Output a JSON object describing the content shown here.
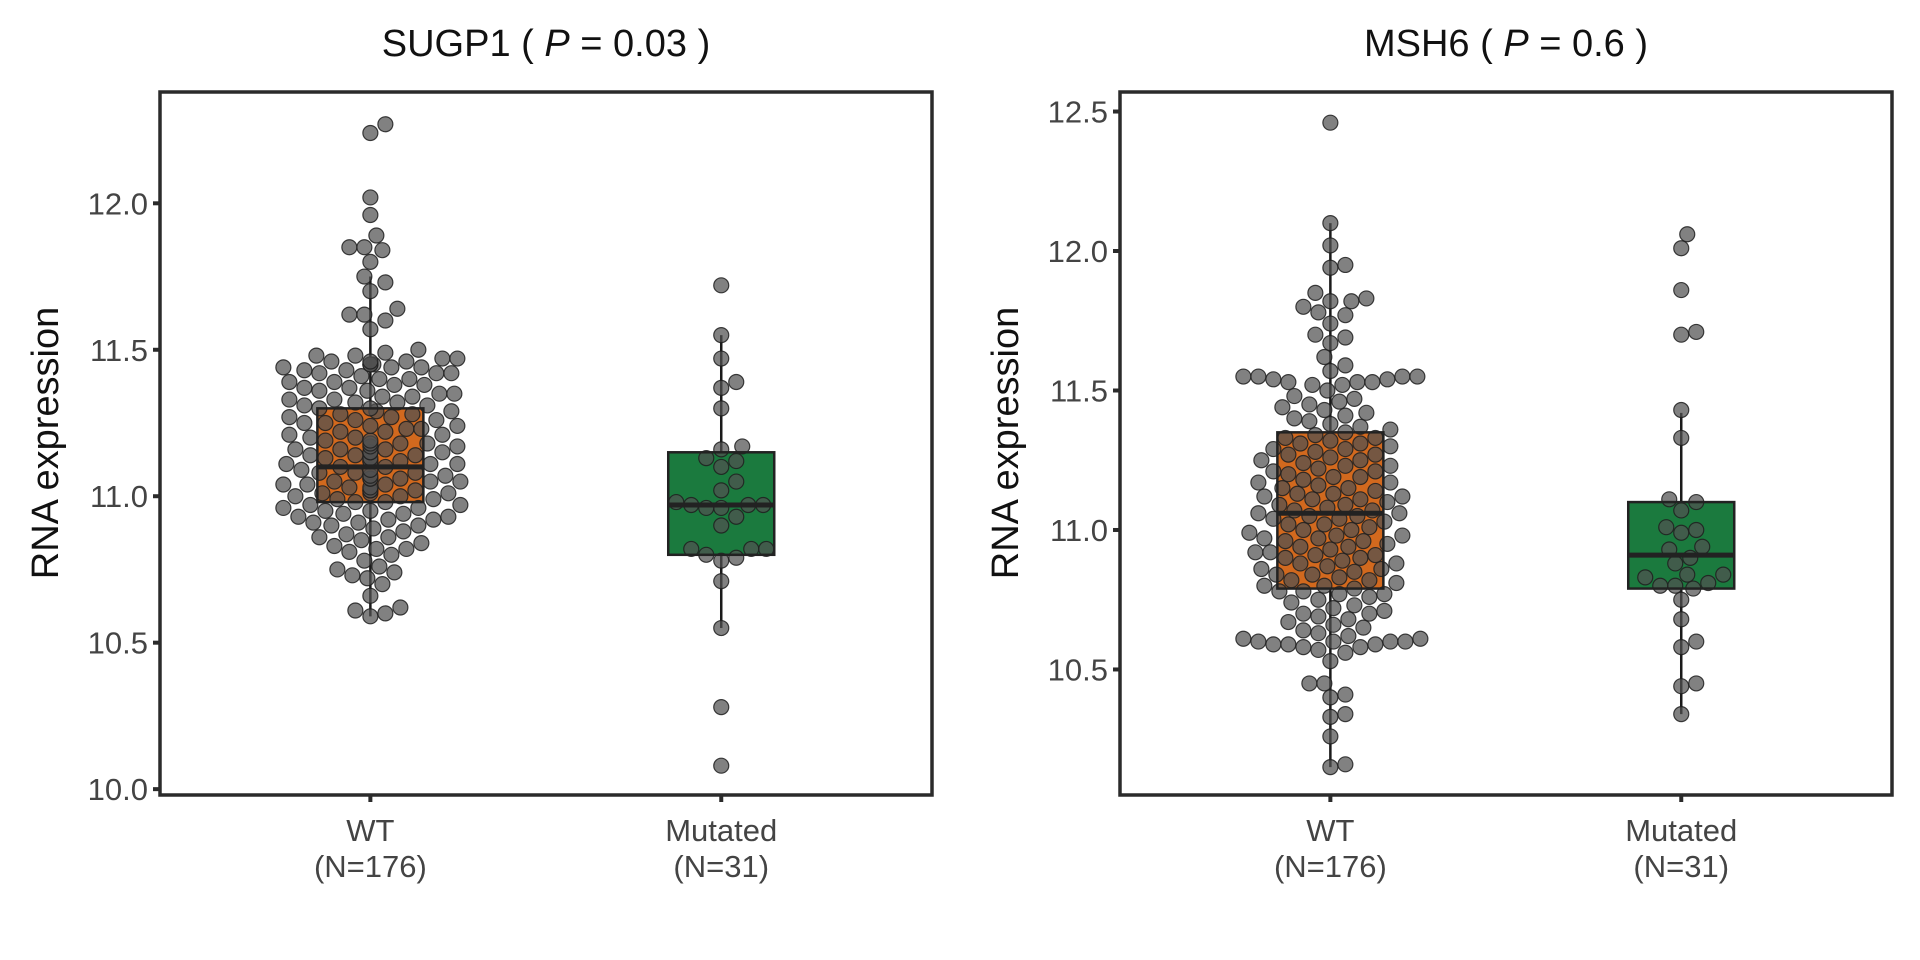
{
  "chart_data": [
    {
      "type": "box+beeswarm",
      "title_gene": "SUGP1",
      "title_p_symbol": "P",
      "title_p_value": "0.03",
      "ylabel": "RNA expression",
      "ylim": [
        9.98,
        12.38
      ],
      "yticks": [
        "10.0",
        "10.5",
        "11.0",
        "11.5",
        "12.0"
      ],
      "categories": [
        {
          "name": "WT",
          "n_label": "(N=176)",
          "color": "#D2691E",
          "box": {
            "q1": 10.98,
            "median": 11.1,
            "q3": 11.3,
            "whisker_low": 10.59,
            "whisker_high": 11.75
          },
          "values": [
            12.27,
            12.24,
            12.02,
            11.96,
            11.89,
            11.85,
            11.85,
            11.84,
            11.8,
            11.75,
            11.73,
            11.7,
            11.64,
            11.62,
            11.62,
            11.6,
            11.57,
            11.5,
            11.4,
            11.4,
            11.41,
            11.42,
            11.42,
            11.43,
            11.43,
            11.44,
            11.44,
            11.45,
            11.45,
            11.45,
            11.46,
            11.46,
            11.47,
            11.47,
            11.48,
            11.48,
            11.49,
            11.42,
            11.44,
            11.46,
            11.3,
            11.3,
            11.31,
            11.31,
            11.32,
            11.32,
            11.33,
            11.33,
            11.34,
            11.34,
            11.35,
            11.35,
            11.36,
            11.36,
            11.37,
            11.37,
            11.38,
            11.38,
            11.39,
            11.39,
            11.2,
            11.2,
            11.21,
            11.21,
            11.22,
            11.22,
            11.23,
            11.23,
            11.24,
            11.24,
            11.25,
            11.25,
            11.26,
            11.26,
            11.27,
            11.27,
            11.28,
            11.28,
            11.29,
            11.29,
            11.1,
            11.1,
            11.11,
            11.11,
            11.12,
            11.12,
            11.13,
            11.13,
            11.14,
            11.14,
            11.15,
            11.15,
            11.16,
            11.16,
            11.17,
            11.17,
            11.18,
            11.18,
            11.19,
            11.19,
            11.12,
            11.14,
            11.16,
            11.18,
            11.11,
            11.15,
            11.0,
            11.0,
            11.01,
            11.01,
            11.02,
            11.02,
            11.03,
            11.03,
            11.04,
            11.04,
            11.05,
            11.05,
            11.06,
            11.06,
            11.07,
            11.07,
            11.08,
            11.08,
            11.09,
            11.09,
            11.02,
            11.04,
            11.06,
            11.08,
            11.01,
            11.05,
            10.9,
            10.9,
            10.91,
            10.91,
            10.92,
            10.92,
            10.93,
            10.93,
            10.94,
            10.94,
            10.95,
            10.95,
            10.96,
            10.96,
            10.97,
            10.97,
            10.98,
            10.98,
            10.99,
            10.99,
            10.8,
            10.81,
            10.82,
            10.83,
            10.84,
            10.85,
            10.86,
            10.87,
            10.88,
            10.89,
            10.82,
            10.86,
            10.7,
            10.72,
            10.73,
            10.75,
            10.76,
            10.78,
            10.74,
            10.59,
            10.6,
            10.61,
            10.62,
            10.66
          ]
        },
        {
          "name": "Mutated",
          "n_label": "(N=31)",
          "color": "#1B7A3E",
          "box": {
            "q1": 10.8,
            "median": 10.97,
            "q3": 11.15,
            "whisker_low": 10.55,
            "whisker_high": 11.55
          },
          "values": [
            11.72,
            11.55,
            11.47,
            11.39,
            11.37,
            11.3,
            11.17,
            11.16,
            11.13,
            11.12,
            11.1,
            11.05,
            11.02,
            10.97,
            10.97,
            10.97,
            10.96,
            10.96,
            10.93,
            10.9,
            10.82,
            10.82,
            10.82,
            10.8,
            10.79,
            10.78,
            10.71,
            10.55,
            10.28,
            10.08,
            10.98
          ]
        }
      ]
    },
    {
      "type": "box+beeswarm",
      "title_gene": "MSH6",
      "title_p_symbol": "P",
      "title_p_value": "0.6",
      "ylabel": "RNA expression",
      "ylim": [
        10.05,
        12.57
      ],
      "yticks": [
        "10.5",
        "11.0",
        "11.5",
        "12.0",
        "12.5"
      ],
      "categories": [
        {
          "name": "WT",
          "n_label": "(N=176)",
          "color": "#D2691E",
          "box": {
            "q1": 10.79,
            "median": 11.06,
            "q3": 11.35,
            "whisker_low": 10.15,
            "whisker_high": 12.1
          },
          "values": [
            12.46,
            12.1,
            12.02,
            11.95,
            11.94,
            11.85,
            11.83,
            11.82,
            11.82,
            11.8,
            11.78,
            11.77,
            11.74,
            11.7,
            11.69,
            11.67,
            11.62,
            11.59,
            11.57,
            11.55,
            11.55,
            11.55,
            11.55,
            11.54,
            11.54,
            11.53,
            11.53,
            11.53,
            11.52,
            11.52,
            10.15,
            10.16,
            10.26,
            10.33,
            10.34,
            10.4,
            10.41,
            10.45,
            10.45,
            10.53,
            10.56,
            10.57,
            10.58,
            10.58,
            10.59,
            10.59,
            10.59,
            10.6,
            10.6,
            10.6,
            10.6,
            10.61,
            10.61,
            10.62,
            10.63,
            10.64,
            10.65,
            10.66,
            10.67,
            10.68,
            10.69,
            10.7,
            10.7,
            10.71,
            10.72,
            10.73,
            10.74,
            10.75,
            10.76,
            10.77,
            10.77,
            10.78,
            10.78,
            10.79,
            10.8,
            10.8,
            10.81,
            10.82,
            10.82,
            10.83,
            10.84,
            10.84,
            10.85,
            10.86,
            10.86,
            10.87,
            10.88,
            10.88,
            10.89,
            10.9,
            10.9,
            10.91,
            10.92,
            10.92,
            10.93,
            10.94,
            10.94,
            10.95,
            10.96,
            10.96,
            10.97,
            10.98,
            10.98,
            10.99,
            11.0,
            11.0,
            11.01,
            11.02,
            11.02,
            11.03,
            11.04,
            11.04,
            11.05,
            11.05,
            11.06,
            11.06,
            10.97,
            10.91,
            11.07,
            11.07,
            11.08,
            11.09,
            11.09,
            11.1,
            11.11,
            11.11,
            11.12,
            11.13,
            11.13,
            11.14,
            11.15,
            11.15,
            11.16,
            11.17,
            11.17,
            11.18,
            11.19,
            11.19,
            11.2,
            11.21,
            11.21,
            11.22,
            11.23,
            11.23,
            11.24,
            11.25,
            11.25,
            11.26,
            11.27,
            11.27,
            11.28,
            11.29,
            11.29,
            11.3,
            11.31,
            11.31,
            11.32,
            11.33,
            11.33,
            11.34,
            11.35,
            11.12,
            11.36,
            11.37,
            11.38,
            11.39,
            11.4,
            11.41,
            11.42,
            11.43,
            11.44,
            11.45,
            11.46,
            11.47,
            11.48,
            11.5
          ]
        },
        {
          "name": "Mutated",
          "n_label": "(N=31)",
          "color": "#1B7A3E",
          "box": {
            "q1": 10.79,
            "median": 10.91,
            "q3": 11.1,
            "whisker_low": 10.34,
            "whisker_high": 11.42
          },
          "values": [
            12.06,
            12.01,
            11.86,
            11.7,
            11.71,
            11.43,
            11.33,
            11.11,
            11.1,
            11.07,
            11.01,
            11.0,
            10.99,
            10.94,
            10.93,
            10.88,
            10.84,
            10.83,
            10.84,
            10.81,
            10.8,
            10.79,
            10.8,
            10.75,
            10.68,
            10.6,
            10.58,
            10.45,
            10.44,
            10.34,
            10.9
          ]
        }
      ]
    }
  ]
}
